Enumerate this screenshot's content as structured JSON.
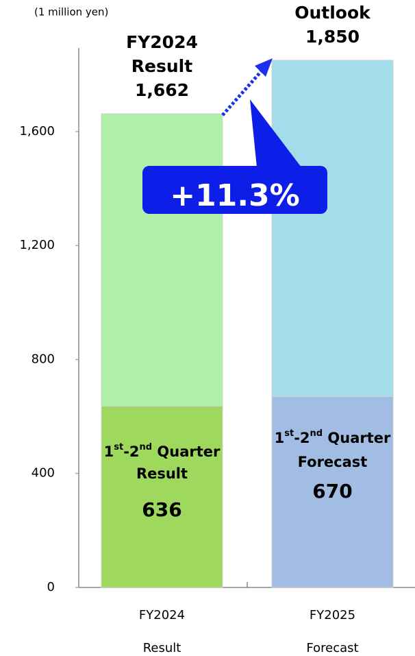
{
  "chart_data": {
    "type": "stacked_bar",
    "unit_label": "(1 million yen)",
    "categories": [
      "FY2024",
      "FY2025"
    ],
    "category_sublabels": [
      "Result",
      "Forecast"
    ],
    "series": [
      {
        "colors": [
          "#9ed85c",
          "#a2bde3"
        ],
        "values": [
          636,
          670
        ],
        "labels": [
          "1st-2nd Quarter",
          "1st-2nd Quarter"
        ],
        "sublabels": [
          "Result",
          "Forecast"
        ]
      },
      {
        "colors": [
          "#aef0aa",
          "#a3dcea"
        ],
        "values": [
          1026,
          1180
        ]
      }
    ],
    "totals": [
      1662,
      1850
    ],
    "total_labels": [
      "1,662",
      "1,850"
    ],
    "total_titles": [
      [
        "FY2024",
        "Result"
      ],
      [
        "Outlook"
      ]
    ],
    "growth_label": "+11.3%",
    "ylim": [
      0,
      1893
    ],
    "yticks": [
      0,
      400,
      800,
      {
        "value": 1200,
        "label": "1,200"
      },
      {
        "value": 1600,
        "label": "1,600"
      }
    ]
  }
}
